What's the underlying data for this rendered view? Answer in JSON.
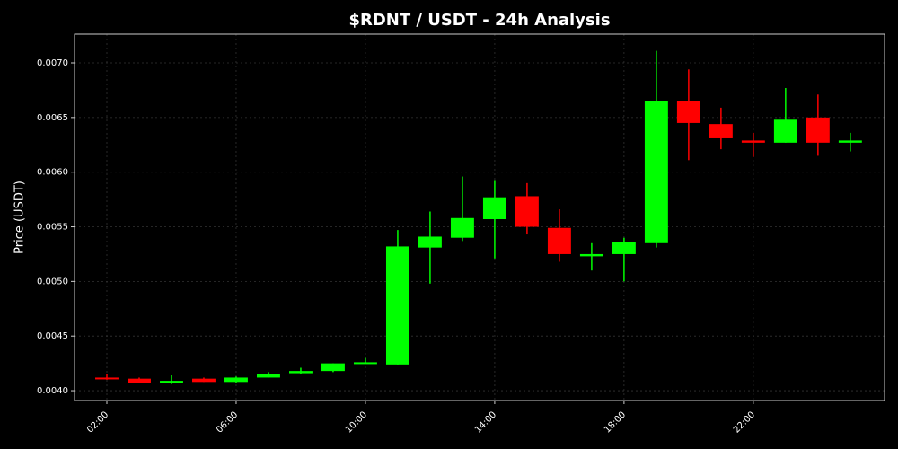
{
  "chart_data": {
    "type": "candlestick",
    "title": "$RDNT / USDT - 24h Analysis",
    "y_label": "Price (USDT)",
    "x": [
      2,
      3,
      4,
      5,
      6,
      7,
      8,
      9,
      10,
      11,
      12,
      13,
      14,
      15,
      16,
      17,
      18,
      19,
      20,
      21,
      22,
      23,
      24,
      25
    ],
    "open": [
      0.00412,
      0.00411,
      0.00407,
      0.00411,
      0.00408,
      0.00412,
      0.00416,
      0.00418,
      0.00425,
      0.00424,
      0.00531,
      0.0054,
      0.00557,
      0.00578,
      0.00549,
      0.00523,
      0.00525,
      0.00535,
      0.00665,
      0.00644,
      0.00629,
      0.00627,
      0.0065,
      0.00627
    ],
    "high": [
      0.00415,
      0.00412,
      0.00414,
      0.00412,
      0.00413,
      0.00417,
      0.00421,
      0.00425,
      0.0043,
      0.00547,
      0.00564,
      0.00596,
      0.00592,
      0.0059,
      0.00566,
      0.00535,
      0.0054,
      0.00711,
      0.00694,
      0.00659,
      0.00636,
      0.00677,
      0.00671,
      0.00636
    ],
    "low": [
      0.0041,
      0.00407,
      0.00406,
      0.00408,
      0.00407,
      0.00412,
      0.00415,
      0.00417,
      0.00425,
      0.00424,
      0.00498,
      0.00537,
      0.00521,
      0.00543,
      0.00518,
      0.0051,
      0.005,
      0.00531,
      0.00611,
      0.00621,
      0.00614,
      0.00627,
      0.00615,
      0.00619
    ],
    "close": [
      0.00411,
      0.00407,
      0.00409,
      0.00408,
      0.00412,
      0.00415,
      0.00418,
      0.00425,
      0.00426,
      0.00532,
      0.00541,
      0.00558,
      0.00577,
      0.0055,
      0.00525,
      0.00525,
      0.00536,
      0.00665,
      0.00645,
      0.00631,
      0.00627,
      0.00648,
      0.00627,
      0.00629
    ],
    "up_color": "#00ff00",
    "down_color": "#ff0000",
    "xlim": [
      1,
      26.06
    ],
    "xticks": [
      {
        "value": 2,
        "label": "02:00"
      },
      {
        "value": 6,
        "label": "06:00"
      },
      {
        "value": 10,
        "label": "10:00"
      },
      {
        "value": 14,
        "label": "14:00"
      },
      {
        "value": 18,
        "label": "18:00"
      },
      {
        "value": 22,
        "label": "22:00"
      }
    ],
    "ylim": [
      0.00391,
      0.007263
    ],
    "yticks": [
      {
        "value": 0.004,
        "label": "0.0040"
      },
      {
        "value": 0.0045,
        "label": "0.0045"
      },
      {
        "value": 0.005,
        "label": "0.0050"
      },
      {
        "value": 0.0055,
        "label": "0.0055"
      },
      {
        "value": 0.006,
        "label": "0.0060"
      },
      {
        "value": 0.0065,
        "label": "0.0065"
      },
      {
        "value": 0.007,
        "label": "0.0070"
      }
    ],
    "grid": true
  }
}
